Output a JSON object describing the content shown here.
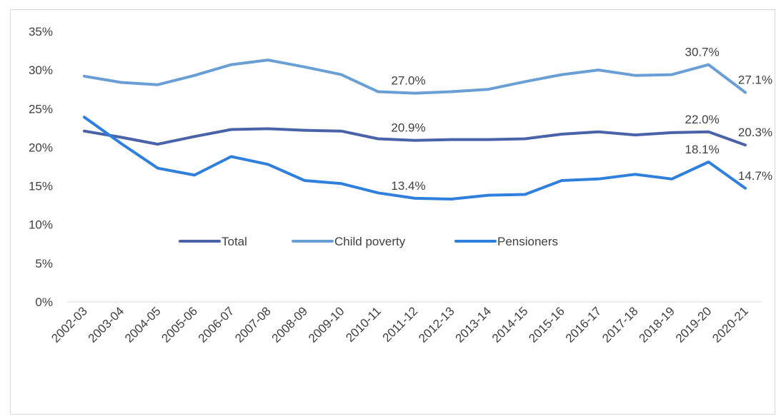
{
  "chart_data": {
    "type": "line",
    "title": "",
    "xlabel": "",
    "ylabel": "",
    "categories": [
      "2002-03",
      "2003-04",
      "2004-05",
      "2005-06",
      "2006-07",
      "2007-08",
      "2008-09",
      "2009-10",
      "2010-11",
      "2011-12",
      "2012-13",
      "2013-14",
      "2014-15",
      "2015-16",
      "2016-17",
      "2017-18",
      "2018-19",
      "2019-20",
      "2020-21"
    ],
    "y_ticks": [
      "0%",
      "5%",
      "10%",
      "15%",
      "20%",
      "25%",
      "30%",
      "35%"
    ],
    "ylim": [
      0,
      35
    ],
    "grid": false,
    "legend_position": "center",
    "series": [
      {
        "name": "Total",
        "color": "#4a63a8",
        "values": [
          22.1,
          21.3,
          20.4,
          21.4,
          22.3,
          22.4,
          22.2,
          22.1,
          21.1,
          20.9,
          21.0,
          21.0,
          21.1,
          21.7,
          22.0,
          21.6,
          21.9,
          22.0,
          20.3
        ],
        "labels": [
          {
            "index": 9,
            "text": "20.9%"
          },
          {
            "index": 17,
            "text": "22.0%"
          },
          {
            "index": 18,
            "text": "20.3%"
          }
        ]
      },
      {
        "name": "Child poverty",
        "color": "#6a9fd6",
        "values": [
          29.2,
          28.4,
          28.1,
          29.3,
          30.7,
          31.3,
          30.4,
          29.4,
          27.2,
          27.0,
          27.2,
          27.5,
          28.5,
          29.4,
          30.0,
          29.3,
          29.4,
          30.7,
          27.1
        ],
        "labels": [
          {
            "index": 9,
            "text": "27.0%"
          },
          {
            "index": 17,
            "text": "30.7%"
          },
          {
            "index": 18,
            "text": "27.1%"
          }
        ]
      },
      {
        "name": "Pensioners",
        "color": "#2f7fdc",
        "values": [
          23.9,
          20.5,
          17.3,
          16.4,
          18.8,
          17.8,
          15.7,
          15.3,
          14.1,
          13.4,
          13.3,
          13.8,
          13.9,
          15.7,
          15.9,
          16.5,
          15.9,
          18.1,
          14.7
        ],
        "labels": [
          {
            "index": 9,
            "text": "13.4%"
          },
          {
            "index": 17,
            "text": "18.1%"
          },
          {
            "index": 18,
            "text": "14.7%"
          }
        ]
      }
    ]
  }
}
